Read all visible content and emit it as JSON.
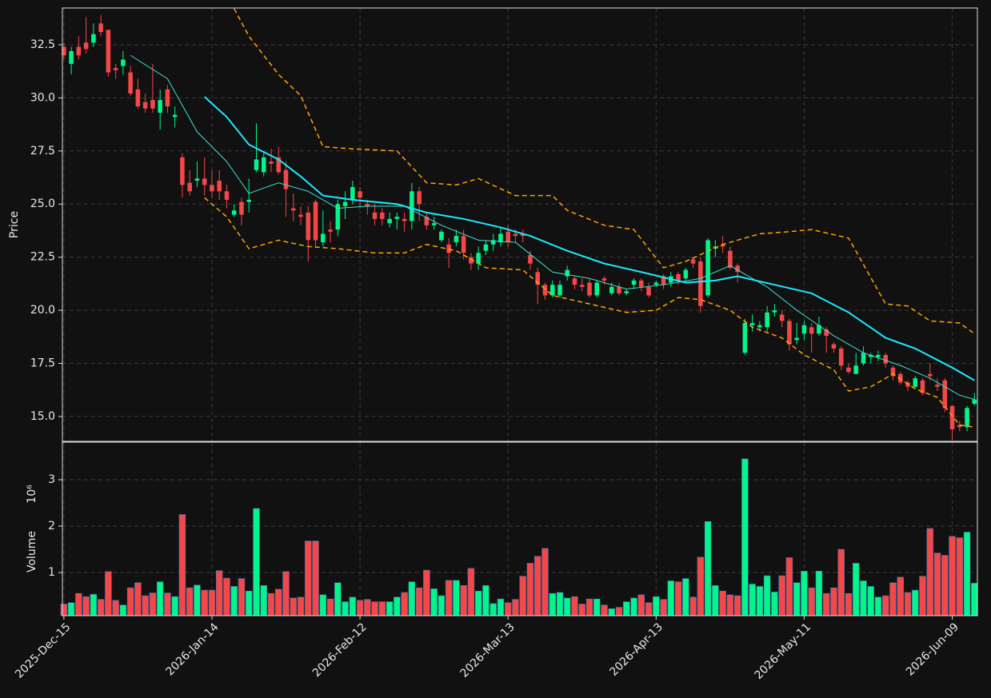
{
  "chart_data": {
    "type": "candlestick",
    "ylabel": "Price",
    "xlim": [
      -0.2,
      123.4
    ],
    "ylim": [
      13.83,
      34.23
    ],
    "yticks": [
      {
        "value": 15,
        "label": "15.0"
      },
      {
        "value": 17.5,
        "label": "17.5"
      },
      {
        "value": 20,
        "label": "20.0"
      },
      {
        "value": 22.5,
        "label": "22.5"
      },
      {
        "value": 25,
        "label": "25.0"
      },
      {
        "value": 27.5,
        "label": "27.5"
      },
      {
        "value": 30,
        "label": "30.0"
      },
      {
        "value": 32.5,
        "label": "32.5"
      }
    ],
    "xticks": [
      {
        "value": 0,
        "label": "2025-Dec-15"
      },
      {
        "value": 20,
        "label": "2026-Jan-14"
      },
      {
        "value": 40,
        "label": "2026-Feb-12"
      },
      {
        "value": 60,
        "label": "2026-Mar-13"
      },
      {
        "value": 80,
        "label": "2026-Apr-13"
      },
      {
        "value": 100,
        "label": "2026-May-11"
      },
      {
        "value": 120,
        "label": "2026-Jun-09"
      }
    ],
    "grid": true,
    "up_color": "#00f58a",
    "down_color": "#f44848",
    "open": [
      32.4,
      31.6,
      32.4,
      32.6,
      32.6,
      33.5,
      33.2,
      31.4,
      31.5,
      31.2,
      30.4,
      29.8,
      29.9,
      29.3,
      30.4,
      29.1,
      27.2,
      26.0,
      26.1,
      26.2,
      25.9,
      26.1,
      25.6,
      24.5,
      25.1,
      25.1,
      26.6,
      26.5,
      27.0,
      27.2,
      26.6,
      24.8,
      24.5,
      24.6,
      25.1,
      23.2,
      23.8,
      23.8,
      24.9,
      25.2,
      25.6,
      25.0,
      24.6,
      24.6,
      24.1,
      24.3,
      24.3,
      24.2,
      25.6,
      24.4,
      24.0,
      23.3,
      23.1,
      23.2,
      23.5,
      22.5,
      22.2,
      22.8,
      23.1,
      23.2,
      23.7,
      23.6,
      23.6,
      22.6,
      21.8,
      21.2,
      20.7,
      20.7,
      21.6,
      21.5,
      21.2,
      21.3,
      20.7,
      21.5,
      20.8,
      21.1,
      20.8,
      21.2,
      21.4,
      21.1,
      21.2,
      21.6,
      21.3,
      21.7,
      21.5,
      22.4,
      22.3,
      20.7,
      22.9,
      23.1,
      22.8,
      22.1,
      18.0,
      19.3,
      19.2,
      19.2,
      19.9,
      19.8,
      19.5,
      18.6,
      18.9,
      19.2,
      18.9,
      19.1,
      18.4,
      18.2,
      17.3,
      17.0,
      17.5,
      17.8,
      17.8,
      17.9,
      17.3,
      17.0,
      16.6,
      16.4,
      16.7,
      17.0,
      16.5,
      16.7,
      15.5,
      14.6,
      14.5,
      15.6
    ],
    "high": [
      32.6,
      32.4,
      32.9,
      33.8,
      33.5,
      33.9,
      33.2,
      31.6,
      32.2,
      31.5,
      30.9,
      30.2,
      31.6,
      30.4,
      30.6,
      29.6,
      27.4,
      26.6,
      27.0,
      27.2,
      26.6,
      26.6,
      25.9,
      25.0,
      25.3,
      26.2,
      28.8,
      27.4,
      27.6,
      27.7,
      27.0,
      25.5,
      24.9,
      24.9,
      25.2,
      24.7,
      24.2,
      25.2,
      25.6,
      26.1,
      25.8,
      25.2,
      25.0,
      24.8,
      24.6,
      24.6,
      24.6,
      26.0,
      25.8,
      24.6,
      24.4,
      23.8,
      23.4,
      23.8,
      23.8,
      22.7,
      23.0,
      23.3,
      23.6,
      23.9,
      24.0,
      23.8,
      23.8,
      22.8,
      22.0,
      21.3,
      21.4,
      21.4,
      22.1,
      21.6,
      21.5,
      21.5,
      21.4,
      21.6,
      21.3,
      21.3,
      21.0,
      21.5,
      21.5,
      21.3,
      21.4,
      21.7,
      21.8,
      21.8,
      22.0,
      22.5,
      22.5,
      23.4,
      23.3,
      23.5,
      23.0,
      22.2,
      19.6,
      19.8,
      19.5,
      20.2,
      20.3,
      20.0,
      19.6,
      19.4,
      19.5,
      19.4,
      19.7,
      19.2,
      18.5,
      18.3,
      17.5,
      18.0,
      18.3,
      18.0,
      18.1,
      18.0,
      17.4,
      17.1,
      16.7,
      16.9,
      16.8,
      17.5,
      16.8,
      16.8,
      15.5,
      14.8,
      15.5,
      16.1
    ],
    "low": [
      31.8,
      31.1,
      31.8,
      32.1,
      32.4,
      32.9,
      31.0,
      30.9,
      31.1,
      30.1,
      29.5,
      29.3,
      29.3,
      28.5,
      29.3,
      28.6,
      25.3,
      25.4,
      25.8,
      25.4,
      25.3,
      25.2,
      24.8,
      24.4,
      24.0,
      24.6,
      26.5,
      26.3,
      26.5,
      26.4,
      24.4,
      24.2,
      24.0,
      22.3,
      23.0,
      23.0,
      23.2,
      23.5,
      24.3,
      25.0,
      24.8,
      24.5,
      24.0,
      24.0,
      23.9,
      23.8,
      23.7,
      23.8,
      24.2,
      23.8,
      23.8,
      23.2,
      22.0,
      23.0,
      22.4,
      21.9,
      21.9,
      22.6,
      22.8,
      23.0,
      23.0,
      23.2,
      23.2,
      21.9,
      20.3,
      20.5,
      20.6,
      20.6,
      21.4,
      21.0,
      20.9,
      20.6,
      20.6,
      21.2,
      20.7,
      20.7,
      20.7,
      21.0,
      20.9,
      20.6,
      21.1,
      21.0,
      21.1,
      21.2,
      21.4,
      22.0,
      19.9,
      20.6,
      22.5,
      22.7,
      21.9,
      21.3,
      17.9,
      19.0,
      19.0,
      19.0,
      19.7,
      19.2,
      18.1,
      18.4,
      18.6,
      18.0,
      18.8,
      18.0,
      18.0,
      17.2,
      17.0,
      17.0,
      17.4,
      17.5,
      17.6,
      17.3,
      16.7,
      16.5,
      16.2,
      16.3,
      16.0,
      16.7,
      16.2,
      15.2,
      13.9,
      14.3,
      14.3,
      15.5
    ],
    "close": [
      32.0,
      32.2,
      32.0,
      32.3,
      33.0,
      33.1,
      31.2,
      31.3,
      31.8,
      30.2,
      29.6,
      29.5,
      29.5,
      29.9,
      29.6,
      29.2,
      25.9,
      25.6,
      26.2,
      25.9,
      25.6,
      25.6,
      25.2,
      24.7,
      24.5,
      25.2,
      27.1,
      27.2,
      26.9,
      26.5,
      25.7,
      24.7,
      24.4,
      23.3,
      23.3,
      23.6,
      23.7,
      25.0,
      25.1,
      25.8,
      25.3,
      24.9,
      24.3,
      24.3,
      24.3,
      24.4,
      24.2,
      25.6,
      25.0,
      24.0,
      24.1,
      23.7,
      22.7,
      23.5,
      22.7,
      22.2,
      22.7,
      23.1,
      23.3,
      23.6,
      23.2,
      23.5,
      23.5,
      22.2,
      21.2,
      20.7,
      21.2,
      21.2,
      21.9,
      21.2,
      21.1,
      20.7,
      21.3,
      21.4,
      21.1,
      20.8,
      20.9,
      21.4,
      21.1,
      20.7,
      21.3,
      21.2,
      21.6,
      21.4,
      21.9,
      22.2,
      20.2,
      23.3,
      23.0,
      23.0,
      22.0,
      21.8,
      19.4,
      19.4,
      19.3,
      19.9,
      20.0,
      19.5,
      18.4,
      18.7,
      19.3,
      18.9,
      19.3,
      18.8,
      18.2,
      17.4,
      17.1,
      17.4,
      18.0,
      17.9,
      17.9,
      17.5,
      16.9,
      16.6,
      16.4,
      16.8,
      16.1,
      16.9,
      16.4,
      15.4,
      14.4,
      14.5,
      15.4,
      15.8
    ],
    "overlays": [
      {
        "color": "#40e0d0",
        "width": 1,
        "dash": false,
        "x": [
          9,
          14,
          18,
          22,
          25,
          29,
          33,
          37,
          41,
          46,
          51,
          56,
          61,
          66,
          71,
          76,
          81,
          86,
          90,
          95,
          99,
          104,
          108,
          113,
          117,
          121,
          123
        ],
        "values": [
          32.0,
          30.9,
          28.4,
          27.0,
          25.5,
          26.0,
          25.6,
          24.8,
          24.9,
          24.9,
          24.0,
          23.3,
          23.2,
          21.8,
          21.5,
          21.0,
          21.2,
          21.5,
          22.1,
          21.1,
          20.0,
          18.8,
          18.0,
          17.4,
          16.8,
          16.0,
          15.8
        ]
      },
      {
        "color": "#1ee8ff",
        "width": 2,
        "dash": false,
        "x": [
          19,
          22,
          25,
          29,
          32,
          35,
          39,
          45,
          49,
          54,
          59,
          63,
          68,
          73,
          78,
          84,
          88,
          91,
          96,
          101,
          106,
          111,
          115,
          120,
          123
        ],
        "values": [
          30.05,
          29.1,
          27.8,
          27.1,
          26.3,
          25.4,
          25.2,
          25.0,
          24.6,
          24.3,
          23.9,
          23.5,
          22.8,
          22.2,
          21.8,
          21.3,
          21.4,
          21.6,
          21.2,
          20.8,
          19.9,
          18.7,
          18.2,
          17.3,
          16.7
        ]
      },
      {
        "color": "#ffa500",
        "width": 1.5,
        "dash": true,
        "x": [
          23,
          25,
          29,
          32,
          35,
          39,
          45,
          49,
          53,
          56,
          61,
          66,
          68,
          73,
          77,
          81,
          84,
          89,
          94,
          98,
          101,
          106,
          111,
          114,
          117,
          121,
          123
        ],
        "values": [
          34.2,
          32.9,
          31.1,
          30.1,
          27.7,
          27.6,
          27.5,
          26.0,
          25.9,
          26.2,
          25.4,
          25.4,
          24.7,
          24.0,
          23.8,
          22.0,
          22.3,
          23.1,
          23.6,
          23.7,
          23.8,
          23.4,
          20.3,
          20.2,
          19.5,
          19.4,
          18.9
        ]
      },
      {
        "color": "#ffa500",
        "width": 1.5,
        "dash": true,
        "x": [
          19,
          22,
          25,
          29,
          33,
          37,
          42,
          46,
          49,
          53,
          57,
          62,
          66,
          71,
          76,
          80,
          83,
          86,
          90,
          93,
          97,
          100,
          104,
          106,
          109,
          112,
          115,
          118,
          121,
          123
        ],
        "values": [
          25.3,
          24.4,
          22.9,
          23.3,
          23.0,
          22.9,
          22.7,
          22.7,
          23.1,
          22.8,
          22.0,
          21.9,
          20.7,
          20.3,
          19.9,
          20.0,
          20.6,
          20.5,
          20.0,
          19.2,
          18.7,
          17.9,
          17.2,
          16.2,
          16.4,
          17.0,
          16.3,
          15.9,
          14.6,
          14.5
        ]
      }
    ],
    "volume": {
      "ylabel": "Volume",
      "offset_label": "10⁶",
      "ylim": [
        0.07,
        3.81
      ],
      "yticks": [
        1,
        2,
        3
      ],
      "values": [
        0.32,
        0.35,
        0.55,
        0.48,
        0.53,
        0.42,
        1.02,
        0.4,
        0.3,
        0.67,
        0.78,
        0.5,
        0.56,
        0.8,
        0.56,
        0.48,
        2.25,
        0.67,
        0.73,
        0.62,
        0.62,
        1.04,
        0.88,
        0.7,
        0.87,
        0.6,
        2.38,
        0.72,
        0.55,
        0.64,
        1.02,
        0.45,
        0.47,
        1.68,
        1.68,
        0.52,
        0.43,
        0.78,
        0.37,
        0.47,
        0.4,
        0.42,
        0.37,
        0.37,
        0.37,
        0.47,
        0.57,
        0.8,
        0.67,
        1.05,
        0.65,
        0.5,
        0.83,
        0.83,
        0.72,
        1.09,
        0.6,
        0.72,
        0.33,
        0.43,
        0.35,
        0.42,
        0.92,
        1.2,
        1.35,
        1.52,
        0.55,
        0.57,
        0.45,
        0.48,
        0.32,
        0.43,
        0.43,
        0.3,
        0.22,
        0.25,
        0.37,
        0.45,
        0.52,
        0.35,
        0.48,
        0.42,
        0.82,
        0.8,
        0.87,
        0.47,
        1.33,
        2.1,
        0.72,
        0.6,
        0.52,
        0.5,
        3.45,
        0.75,
        0.7,
        0.93,
        0.58,
        0.93,
        1.32,
        0.78,
        1.03,
        0.67,
        1.03,
        0.55,
        0.67,
        1.5,
        0.55,
        1.2,
        0.82,
        0.7,
        0.47,
        0.5,
        0.78,
        0.9,
        0.57,
        0.62,
        0.92,
        1.95,
        1.42,
        1.37,
        1.78,
        1.75,
        1.87,
        0.77
      ]
    }
  }
}
